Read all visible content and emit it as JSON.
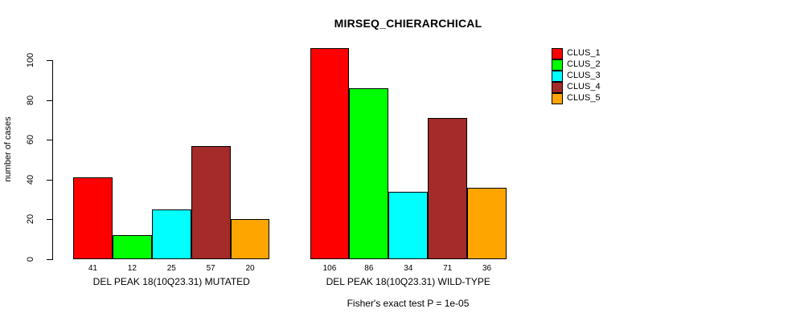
{
  "title": "MIRSEQ_CHIERARCHICAL",
  "y_axis": {
    "label": "number of cases",
    "ticks": [
      0,
      20,
      40,
      60,
      80,
      100
    ]
  },
  "footer": "Fisher's exact test P = 1e-05",
  "legend": {
    "items": [
      {
        "label": "CLUS_1",
        "color": "#FF0000"
      },
      {
        "label": "CLUS_2",
        "color": "#00FF00"
      },
      {
        "label": "CLUS_3",
        "color": "#00FFFF"
      },
      {
        "label": "CLUS_4",
        "color": "#A52A2A"
      },
      {
        "label": "CLUS_5",
        "color": "#FFA500"
      }
    ]
  },
  "chart_data": {
    "type": "bar",
    "title": "MIRSEQ_CHIERARCHICAL",
    "xlabel": "",
    "ylabel": "number of cases",
    "ylim": [
      0,
      106
    ],
    "yticks": [
      0,
      20,
      40,
      60,
      80,
      100
    ],
    "grid": false,
    "legend_position": "top-right",
    "series": [
      "CLUS_1",
      "CLUS_2",
      "CLUS_3",
      "CLUS_4",
      "CLUS_5"
    ],
    "series_colors": [
      "#FF0000",
      "#00FF00",
      "#00FFFF",
      "#A52A2A",
      "#FFA500"
    ],
    "groups": [
      {
        "label": "DEL PEAK 18(10Q23.31) MUTATED",
        "values": [
          41,
          12,
          25,
          57,
          20
        ]
      },
      {
        "label": "DEL PEAK 18(10Q23.31) WILD-TYPE",
        "values": [
          106,
          86,
          34,
          71,
          36
        ]
      }
    ],
    "annotation": "Fisher's exact test P = 1e-05"
  }
}
